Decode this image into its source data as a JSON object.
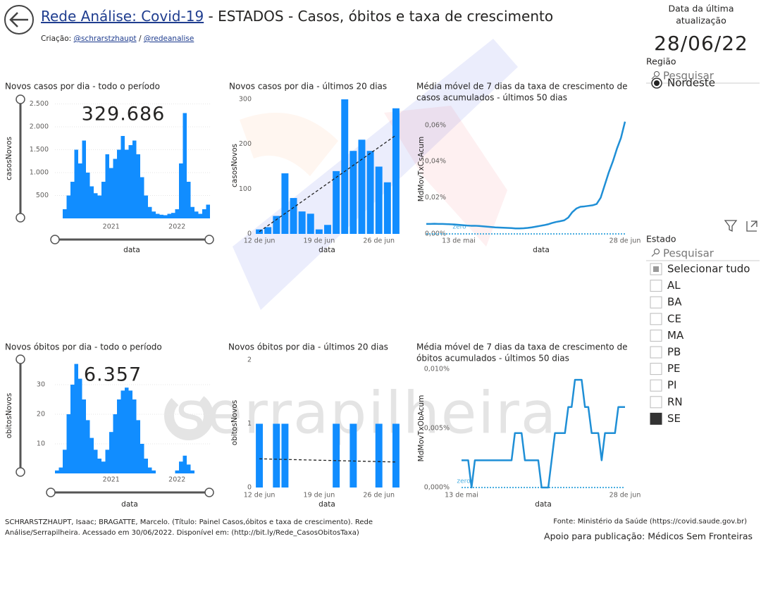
{
  "header": {
    "title_link": "Rede Análise: Covid-19",
    "title_rest": " - ESTADOS - Casos, óbitos e taxa de crescimento",
    "credit": [
      "Criação: ",
      "@schrarstzhaupt",
      " / ",
      "@redeanalise"
    ],
    "update_label": [
      "Data da última",
      "atualização"
    ],
    "update_date": "28/06/22"
  },
  "watermark": "serrapilheira",
  "chart_data": [
    {
      "type": "bar",
      "title": [
        "Novos casos por dia - todo o período"
      ],
      "annotation": "329.686",
      "x_label": "data",
      "y_label": "casosNovos",
      "color": "#118dff",
      "grid": true,
      "categories": [
        null,
        null,
        null,
        null,
        null,
        null,
        null,
        null,
        null,
        null,
        null,
        null,
        null,
        null,
        "2021",
        null,
        null,
        null,
        null,
        null,
        null,
        null,
        null,
        null,
        null,
        null,
        null,
        null,
        null,
        null,
        null,
        "2022",
        null,
        null,
        null,
        null,
        null,
        null,
        null,
        null
      ],
      "values": [
        0,
        0,
        200,
        500,
        800,
        1500,
        1200,
        1700,
        1000,
        700,
        550,
        500,
        800,
        1400,
        1100,
        1300,
        1500,
        1800,
        1500,
        1600,
        1700,
        1400,
        900,
        500,
        250,
        150,
        100,
        80,
        70,
        100,
        120,
        200,
        1200,
        2300,
        800,
        250,
        150,
        100,
        200,
        300
      ],
      "ylim": [
        0,
        2600
      ],
      "yticks": [
        500,
        {
          "value": 1000,
          "label": "1.000"
        },
        {
          "value": 1500,
          "label": "1.500"
        },
        {
          "value": 2000,
          "label": "2.000"
        },
        {
          "value": 2500,
          "label": "2.500"
        }
      ]
    },
    {
      "type": "bar",
      "title": [
        "Novos casos por dia - últimos 20 dias"
      ],
      "x_label": "data",
      "y_label": "casosNovos",
      "color": "#118dff",
      "grid": false,
      "categories": [
        "12 de jun",
        null,
        null,
        null,
        null,
        null,
        null,
        "19 de jun",
        null,
        null,
        null,
        null,
        null,
        null,
        "26 de jun",
        null,
        null
      ],
      "values": [
        10,
        15,
        40,
        135,
        80,
        50,
        45,
        10,
        20,
        140,
        300,
        185,
        210,
        185,
        150,
        115,
        280
      ],
      "trendline": [
        5,
        220
      ],
      "ylim": [
        0,
        300
      ],
      "yticks": [
        0,
        100,
        200,
        300
      ]
    },
    {
      "type": "line",
      "title": [
        "Média móvel de 7 dias da taxa de crescimento de",
        "casos acumulados - últimos 50 dias"
      ],
      "x_label": "data",
      "y_label": "MdMovTxCsAcum",
      "color": "#1f8fd6",
      "grid": false,
      "categories": [
        null,
        null,
        null,
        null,
        null,
        null,
        null,
        null,
        "13 de mai",
        null,
        null,
        null,
        null,
        null,
        null,
        null,
        null,
        null,
        null,
        null,
        null,
        null,
        null,
        null,
        null,
        null,
        null,
        null,
        null,
        null,
        null,
        null,
        null,
        null,
        null,
        null,
        null,
        null,
        null,
        null,
        null,
        null,
        null,
        null,
        null,
        null,
        null,
        null,
        null,
        "28 de jun"
      ],
      "values": [
        0.0055,
        0.0055,
        0.0056,
        0.0055,
        0.0055,
        0.0054,
        0.0053,
        0.0052,
        0.005,
        0.0048,
        0.0046,
        0.0045,
        0.0045,
        0.0044,
        0.0042,
        0.004,
        0.0038,
        0.0036,
        0.0035,
        0.0034,
        0.0033,
        0.0032,
        0.003,
        0.003,
        0.0031,
        0.0033,
        0.0036,
        0.004,
        0.0044,
        0.0048,
        0.0053,
        0.006,
        0.0066,
        0.007,
        0.0075,
        0.009,
        0.012,
        0.014,
        0.015,
        0.0152,
        0.0155,
        0.0158,
        0.0165,
        0.02,
        0.027,
        0.034,
        0.04,
        0.047,
        0.053,
        0.062
      ],
      "reference_line": {
        "label": "zero",
        "value": 0
      },
      "ylim": [
        0,
        0.065
      ],
      "yticks": [
        {
          "value": 0,
          "label": "0,00%"
        },
        {
          "value": 0.02,
          "label": "0,02%"
        },
        {
          "value": 0.04,
          "label": "0,04%"
        },
        {
          "value": 0.06,
          "label": "0,06%"
        }
      ]
    },
    {
      "type": "bar",
      "title": [
        "Novos óbitos por dia - todo o período"
      ],
      "annotation": "6.357",
      "x_label": "data",
      "y_label": "obitosNovos",
      "color": "#118dff",
      "grid": true,
      "categories": [
        null,
        null,
        null,
        null,
        null,
        null,
        null,
        null,
        null,
        null,
        null,
        null,
        null,
        null,
        "2021",
        null,
        null,
        null,
        null,
        null,
        null,
        null,
        null,
        null,
        null,
        null,
        null,
        null,
        null,
        null,
        null,
        "2022",
        null,
        null,
        null,
        null,
        null,
        null,
        null,
        null
      ],
      "values": [
        1,
        2,
        8,
        20,
        30,
        37,
        32,
        25,
        18,
        12,
        8,
        5,
        4,
        8,
        14,
        20,
        25,
        28,
        29,
        28,
        25,
        18,
        10,
        5,
        2,
        1,
        0,
        0,
        0,
        0,
        0,
        1,
        4,
        6,
        3,
        1,
        0,
        0,
        0,
        0
      ],
      "ylim": [
        0,
        40
      ],
      "yticks": [
        10,
        20,
        30
      ]
    },
    {
      "type": "bar",
      "title": [
        "Novos óbitos por dia - últimos 20 dias"
      ],
      "x_label": "data",
      "y_label": "obitosNovos",
      "color": "#118dff",
      "grid": false,
      "categories": [
        "12 de jun",
        null,
        null,
        null,
        null,
        null,
        null,
        "19 de jun",
        null,
        null,
        null,
        null,
        null,
        null,
        "26 de jun",
        null,
        null
      ],
      "values": [
        1,
        0,
        1,
        1,
        0,
        0,
        0,
        0,
        0,
        1,
        0,
        1,
        0,
        0,
        1,
        0,
        1
      ],
      "trendline": [
        0.45,
        0.4
      ],
      "ylim": [
        0,
        2
      ],
      "yticks": [
        0,
        1,
        2
      ]
    },
    {
      "type": "line",
      "title": [
        "Média móvel de 7 dias da taxa de crescimento de",
        "óbitos acumulados - últimos 50 dias"
      ],
      "x_label": "data",
      "y_label": "MdMovTxObAcum",
      "color": "#1f8fd6",
      "grid": false,
      "categories": [
        "13 de mai",
        null,
        null,
        null,
        null,
        null,
        null,
        null,
        null,
        null,
        null,
        null,
        null,
        null,
        null,
        null,
        null,
        null,
        null,
        null,
        null,
        null,
        null,
        null,
        null,
        null,
        null,
        null,
        null,
        null,
        null,
        null,
        null,
        null,
        null,
        null,
        null,
        null,
        null,
        null,
        null,
        null,
        null,
        null,
        null,
        null,
        null,
        null,
        null,
        "28 de jun"
      ],
      "values": [
        0.0023,
        0.0023,
        0.0023,
        0,
        0.0023,
        0.0023,
        0.0023,
        0.0023,
        0.0023,
        0.0023,
        0.0023,
        0.0023,
        0.0023,
        0.0023,
        0.0023,
        0.0023,
        0.0046,
        0.0046,
        0.0046,
        0.0023,
        0.0023,
        0.0023,
        0.0023,
        0.0023,
        0,
        0,
        0,
        0.0023,
        0.0046,
        0.0046,
        0.0046,
        0.0046,
        0.0068,
        0.0068,
        0.0091,
        0.0091,
        0.0091,
        0.0068,
        0.0068,
        0.0046,
        0.0046,
        0.0046,
        0.0023,
        0.0046,
        0.0046,
        0.0046,
        0.0046,
        0.0068,
        0.0068,
        0.0068
      ],
      "reference_line": {
        "label": "zero",
        "value": 0
      },
      "ylim": [
        0,
        0.01
      ],
      "yticks": [
        {
          "value": 0,
          "label": "0,000%"
        },
        {
          "value": 0.005,
          "label": "0,005%"
        },
        {
          "value": 0.01,
          "label": "0,010%"
        }
      ]
    }
  ],
  "slicers": [
    {
      "title": "Região",
      "search": "Pesquisar",
      "options": [
        {
          "label": "Nordeste",
          "selected": true
        }
      ]
    },
    {
      "title": "Estado",
      "search": "Pesquisar",
      "select_all": "Selecionar tudo",
      "options": [
        {
          "label": "AL",
          "selected": false
        },
        {
          "label": "BA",
          "selected": false
        },
        {
          "label": "CE",
          "selected": false
        },
        {
          "label": "MA",
          "selected": false
        },
        {
          "label": "PB",
          "selected": false
        },
        {
          "label": "PE",
          "selected": false
        },
        {
          "label": "PI",
          "selected": false
        },
        {
          "label": "RN",
          "selected": false
        },
        {
          "label": "SE",
          "selected": true
        }
      ]
    }
  ],
  "footer": {
    "citation": [
      "SCHRARSTZHAUPT, Isaac; BRAGATTE, Marcelo. (Título: Painel Casos,óbitos e taxa de crescimento). Rede",
      "Análise/Serrapilheira. Acessado em 30/06/2022. Disponível em: (http://bit.ly/Rede_CasosObitosTaxa)"
    ],
    "source": "Fonte: Ministério da Saúde (https://covid.saude.gov.br)",
    "support": "Apoio para publicação: Médicos Sem Fronteiras"
  }
}
